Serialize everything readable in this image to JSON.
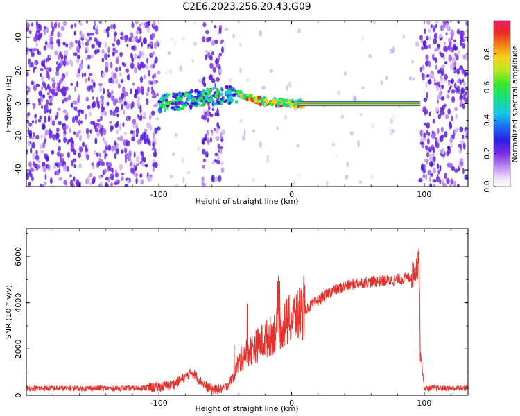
{
  "title": "C2E6.2023.256.20.43.G09",
  "charts": {
    "spectrogram": {
      "type": "heatmap",
      "xlabel": "Height of straight line (km)",
      "ylabel": "Frequency (Hz)",
      "xlim": [
        -200,
        133
      ],
      "ylim": [
        -50,
        50
      ],
      "x_ticks": [
        "-100",
        "0",
        "100"
      ],
      "x_tick_values": [
        -100,
        0,
        100
      ],
      "y_ticks": [
        "-40",
        "-20",
        "0",
        "20",
        "40"
      ],
      "y_tick_values": [
        -40,
        -20,
        0,
        20,
        40
      ],
      "signal_track": [
        {
          "x": -100,
          "y": 0
        },
        {
          "x": -90,
          "y": 1
        },
        {
          "x": -75,
          "y": 3
        },
        {
          "x": -60,
          "y": 4
        },
        {
          "x": -50,
          "y": 5
        },
        {
          "x": -40,
          "y": 6
        },
        {
          "x": -30,
          "y": 3
        },
        {
          "x": -20,
          "y": 1
        },
        {
          "x": -10,
          "y": 0.5
        },
        {
          "x": 0,
          "y": 0
        },
        {
          "x": 100,
          "y": 0
        }
      ],
      "gap_regions": [
        [
          -100,
          -67
        ],
        [
          -52,
          97
        ]
      ]
    },
    "colorbar": {
      "label": "Normalized spectral amplitude",
      "ticks": [
        "0.0",
        "0.2",
        "0.4",
        "0.6",
        "0.8"
      ],
      "tick_values": [
        0.0,
        0.2,
        0.4,
        0.6,
        0.8
      ],
      "range": [
        0,
        1
      ]
    },
    "snr": {
      "type": "line",
      "xlabel": "Height of straight line (km)",
      "ylabel": "SNR (10 * v/v)",
      "xlim": [
        -200,
        133
      ],
      "ylim": [
        0,
        7200
      ],
      "x_ticks": [
        "-100",
        "0",
        "100"
      ],
      "x_tick_values": [
        -100,
        0,
        100
      ],
      "y_ticks": [
        "0",
        "2000",
        "4000",
        "6000"
      ],
      "y_tick_values": [
        0,
        2000,
        4000,
        6000
      ],
      "color": "#e8312b"
    }
  },
  "chart_data": [
    {
      "type": "heatmap",
      "xlabel": "Height of straight line (km)",
      "ylabel": "Frequency (Hz)",
      "xlim": [
        -200,
        133
      ],
      "ylim": [
        -50,
        50
      ],
      "colorbar_label": "Normalized spectral amplitude",
      "colorbar_range": [
        0,
        1
      ]
    },
    {
      "type": "line",
      "xlabel": "Height of straight line (km)",
      "ylabel": "SNR (10 * v/v)",
      "xlim": [
        -200,
        133
      ],
      "ylim": [
        0,
        7200
      ],
      "series": [
        {
          "x": [
            -200,
            -180,
            -160,
            -140,
            -120,
            -100,
            -90,
            -85,
            -80,
            -75,
            -70,
            -65,
            -60,
            -55,
            -50,
            -45,
            -40,
            -35,
            -30,
            -25,
            -20,
            -15,
            -10,
            -5,
            0,
            5,
            10,
            15,
            20,
            25,
            30,
            40,
            50,
            60,
            70,
            80,
            90,
            95,
            96,
            97,
            100,
            110,
            120,
            133
          ],
          "y": [
            300,
            300,
            300,
            300,
            300,
            350,
            450,
            600,
            800,
            1000,
            700,
            400,
            250,
            250,
            300,
            700,
            1400,
            1800,
            2000,
            2200,
            2400,
            2600,
            2900,
            3100,
            3300,
            3500,
            3700,
            3900,
            4100,
            4300,
            4500,
            4700,
            4850,
            4900,
            4950,
            5000,
            5100,
            5600,
            6300,
            2000,
            300,
            300,
            300,
            300
          ]
        }
      ]
    }
  ]
}
